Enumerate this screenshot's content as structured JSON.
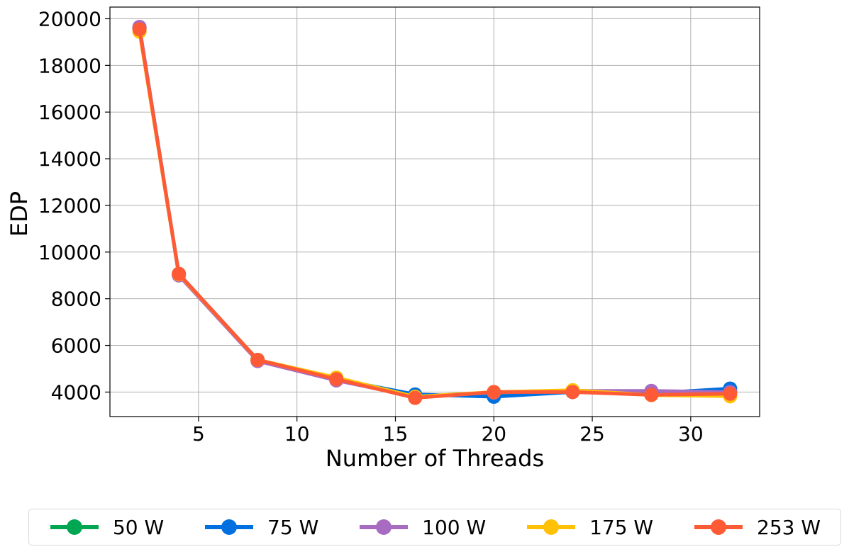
{
  "chart_data": {
    "type": "line",
    "xlabel": "Number of Threads",
    "ylabel": "EDP",
    "xlim": [
      0.5,
      33.5
    ],
    "ylim": [
      2950,
      20500
    ],
    "xticks": [
      5,
      10,
      15,
      20,
      25,
      30
    ],
    "yticks": [
      4000,
      6000,
      8000,
      10000,
      12000,
      14000,
      16000,
      18000,
      20000
    ],
    "grid": true,
    "legend_position": "bottom, outside plot",
    "x": [
      2,
      4,
      8,
      12,
      16,
      20,
      24,
      28,
      32
    ],
    "series": [
      {
        "name": "50 W",
        "color": "#00a651",
        "values": [
          19600,
          9050,
          5380,
          4550,
          3830,
          3900,
          4050,
          3950,
          4050
        ]
      },
      {
        "name": "75 W",
        "color": "#0070e0",
        "values": [
          19600,
          9050,
          5380,
          4550,
          3900,
          3800,
          4000,
          3950,
          4150
        ]
      },
      {
        "name": "100 W",
        "color": "#a86bc2",
        "values": [
          19650,
          9000,
          5330,
          4500,
          3800,
          3980,
          4050,
          4050,
          4000
        ]
      },
      {
        "name": "175 W",
        "color": "#ffc107",
        "values": [
          19450,
          9050,
          5380,
          4620,
          3800,
          4000,
          4080,
          3870,
          3820
        ]
      },
      {
        "name": "253 W",
        "color": "#ff5a36",
        "values": [
          19550,
          9070,
          5380,
          4550,
          3750,
          4000,
          4000,
          3880,
          3930
        ]
      }
    ]
  }
}
